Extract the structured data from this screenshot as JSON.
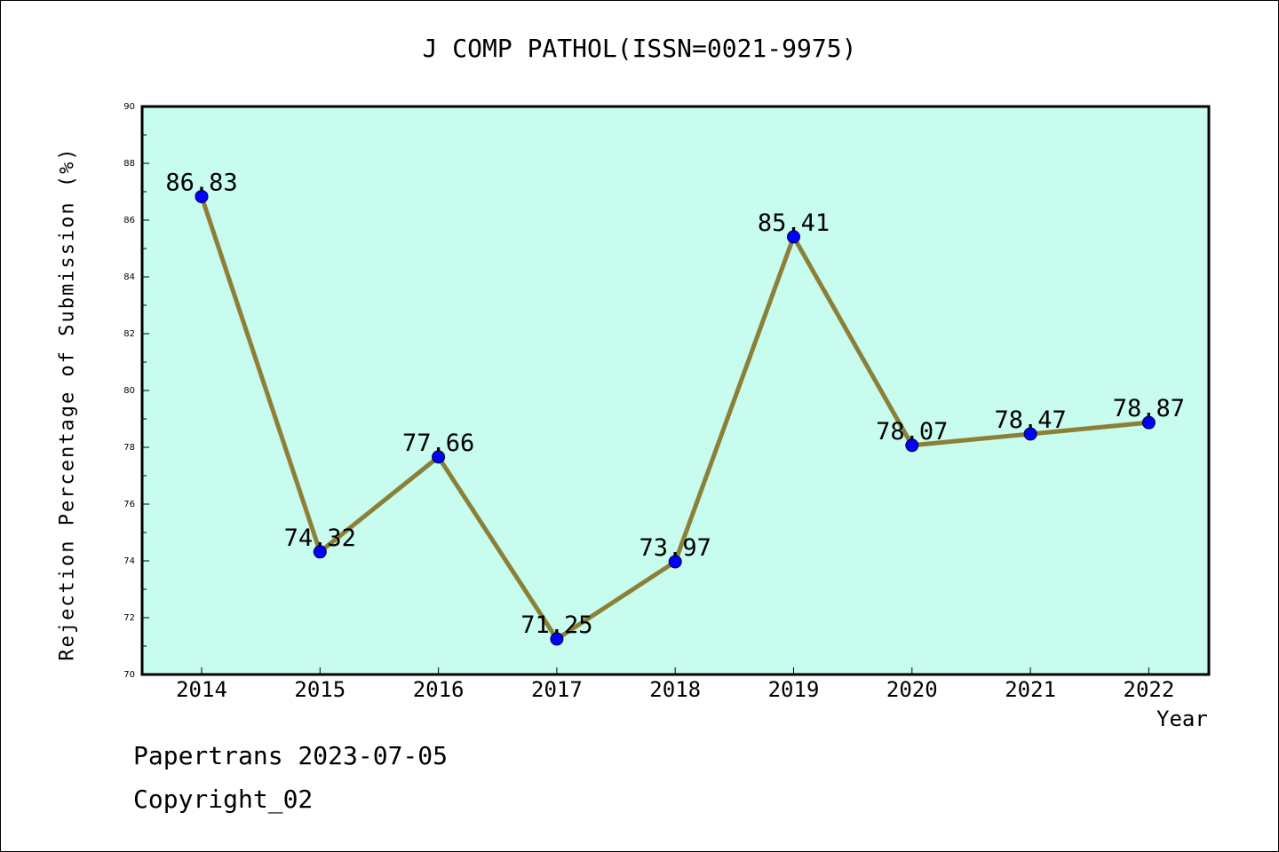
{
  "chart_data": {
    "type": "line",
    "title": "J COMP PATHOL(ISSN=0021-9975)",
    "xlabel": "Year",
    "ylabel": "Rejection Percentage of Submission (%)",
    "categories": [
      "2014",
      "2015",
      "2016",
      "2017",
      "2018",
      "2019",
      "2020",
      "2021",
      "2022"
    ],
    "values": [
      86.83,
      74.32,
      77.66,
      71.25,
      73.97,
      85.41,
      78.07,
      78.47,
      78.87
    ],
    "data_labels": [
      "86.83",
      "74.32",
      "77.66",
      "71.25",
      "73.97",
      "85.41",
      "78.07",
      "78.47",
      "78.87"
    ],
    "ylim": [
      70,
      90
    ],
    "yticks": [
      70,
      72,
      74,
      76,
      78,
      80,
      82,
      84,
      86,
      88,
      90
    ],
    "grid": false,
    "colors": {
      "plot_background": "#c8fcee",
      "line": "#8b8038",
      "marker": "#0000ff"
    }
  },
  "footer": {
    "line1": "Papertrans 2023-07-05",
    "line2": "Copyright_02"
  }
}
